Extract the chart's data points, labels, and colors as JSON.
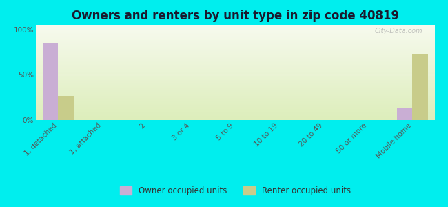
{
  "title": "Owners and renters by unit type in zip code 40819",
  "categories": [
    "1, detached",
    "1, attached",
    "2",
    "3 or 4",
    "5 to 9",
    "10 to 19",
    "20 to 49",
    "50 or more",
    "Mobile home"
  ],
  "owner_values": [
    85,
    0,
    0,
    0,
    0,
    0,
    0,
    0,
    13
  ],
  "renter_values": [
    27,
    0,
    0,
    0,
    0,
    0,
    0,
    0,
    73
  ],
  "owner_color": "#c9aed4",
  "renter_color": "#c8cc8a",
  "background_color": "#00eeee",
  "yticks": [
    0,
    50,
    100
  ],
  "ylim": [
    0,
    105
  ],
  "bar_width": 0.35,
  "title_fontsize": 12,
  "tick_fontsize": 7.5,
  "legend_labels": [
    "Owner occupied units",
    "Renter occupied units"
  ],
  "watermark": "City-Data.com",
  "gradient_top": "#f7faee",
  "gradient_bottom": "#ddeebb"
}
